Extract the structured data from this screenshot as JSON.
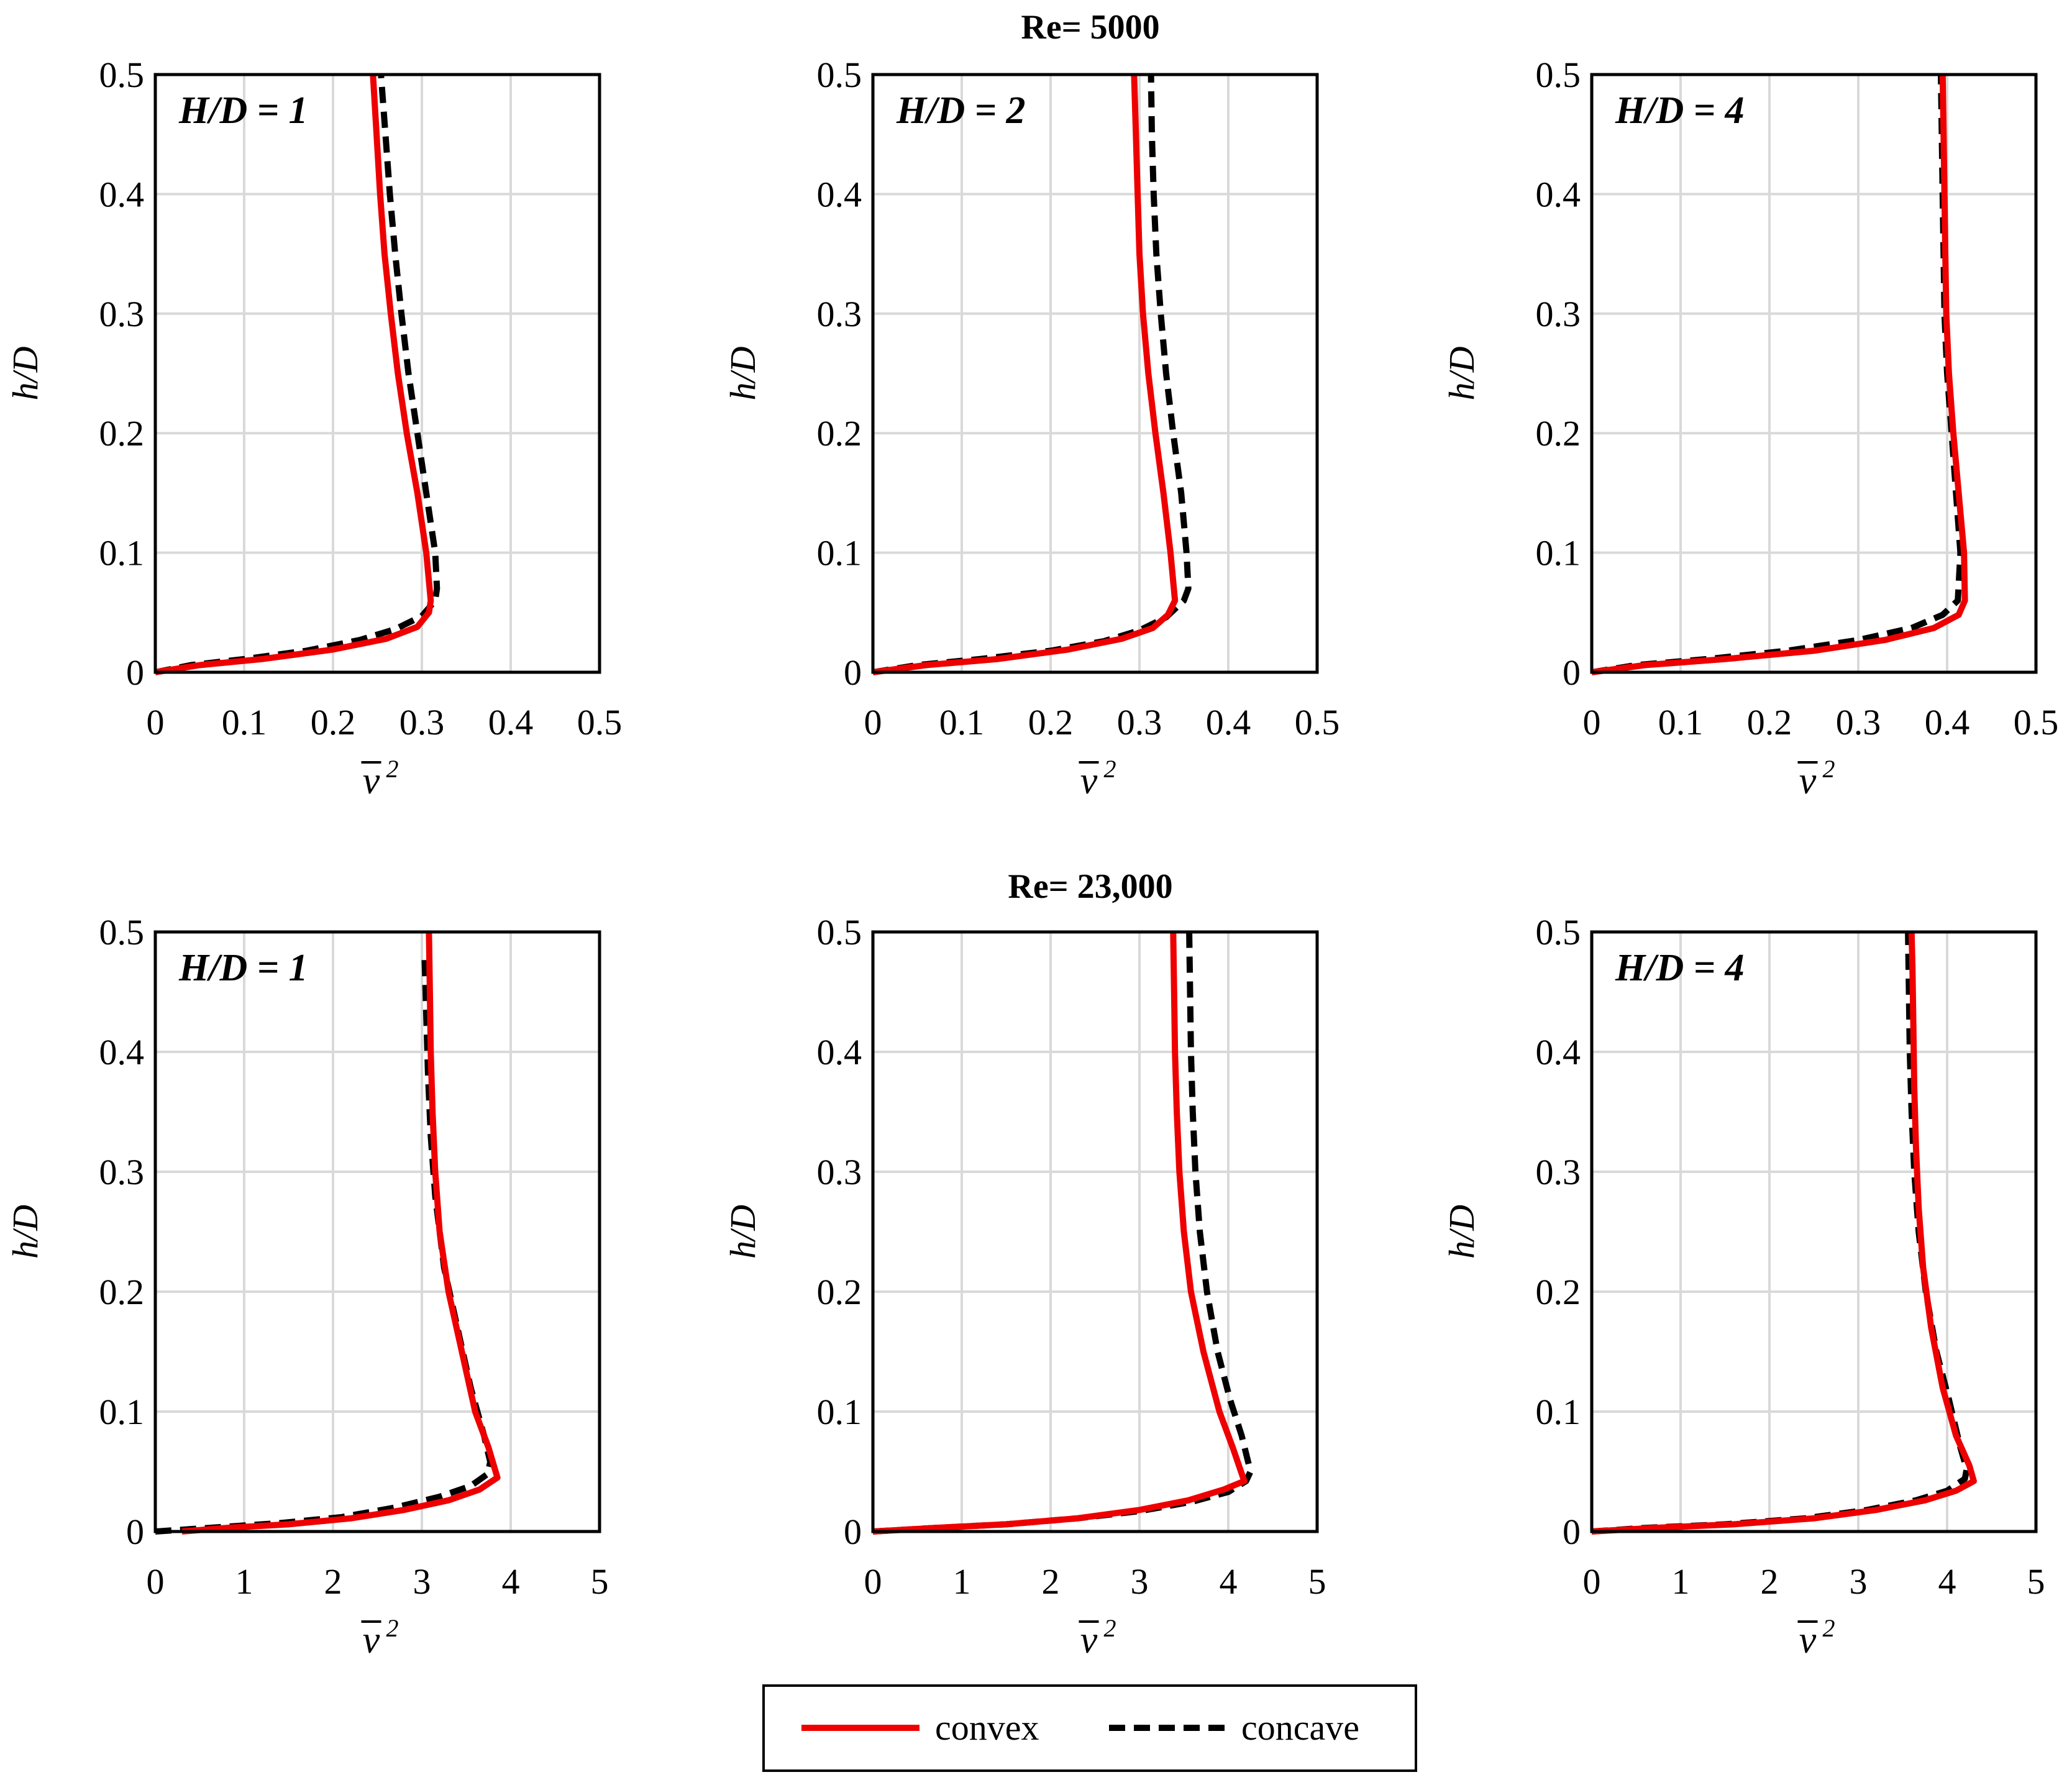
{
  "figure": {
    "row_titles": [
      "Re= 5000",
      "Re= 23,000"
    ],
    "y_axis_label": {
      "italic": "h/D"
    },
    "x_axis_label": {
      "symbol": "v",
      "superscript": "2"
    },
    "legend": {
      "entries": [
        "convex",
        "concave"
      ]
    },
    "colors": {
      "convex": "#ee0000",
      "concave": "#000000",
      "grid": "#d9d9d9",
      "frame": "#000000"
    }
  },
  "chart_data": [
    {
      "type": "line",
      "row": 0,
      "col": 0,
      "annotation": "H/D = 1",
      "ylabel": "h/D",
      "xlabel": "v̄²",
      "xlim": [
        0,
        0.5
      ],
      "ylim": [
        0,
        0.5
      ],
      "xticks": [
        "0",
        "0.1",
        "0.2",
        "0.3",
        "0.4",
        "0.5"
      ],
      "yticks": [
        "0",
        "0.1",
        "0.2",
        "0.3",
        "0.4",
        "0.5"
      ],
      "series": [
        {
          "name": "convex",
          "points": [
            [
              0,
              0
            ],
            [
              0.05,
              0.006
            ],
            [
              0.12,
              0.011
            ],
            [
              0.2,
              0.019
            ],
            [
              0.26,
              0.028
            ],
            [
              0.295,
              0.038
            ],
            [
              0.308,
              0.05
            ],
            [
              0.31,
              0.06
            ],
            [
              0.305,
              0.1
            ],
            [
              0.295,
              0.15
            ],
            [
              0.283,
              0.2
            ],
            [
              0.273,
              0.25
            ],
            [
              0.265,
              0.3
            ],
            [
              0.258,
              0.35
            ],
            [
              0.253,
              0.4
            ],
            [
              0.249,
              0.45
            ],
            [
              0.245,
              0.5
            ]
          ]
        },
        {
          "name": "concave",
          "points": [
            [
              0,
              0
            ],
            [
              0.04,
              0.006
            ],
            [
              0.1,
              0.011
            ],
            [
              0.17,
              0.018
            ],
            [
              0.23,
              0.027
            ],
            [
              0.27,
              0.036
            ],
            [
              0.3,
              0.047
            ],
            [
              0.315,
              0.06
            ],
            [
              0.317,
              0.07
            ],
            [
              0.315,
              0.1
            ],
            [
              0.305,
              0.15
            ],
            [
              0.295,
              0.2
            ],
            [
              0.285,
              0.25
            ],
            [
              0.277,
              0.3
            ],
            [
              0.27,
              0.35
            ],
            [
              0.264,
              0.4
            ],
            [
              0.259,
              0.45
            ],
            [
              0.254,
              0.5
            ]
          ]
        }
      ]
    },
    {
      "type": "line",
      "row": 0,
      "col": 1,
      "annotation": "H/D = 2",
      "ylabel": "h/D",
      "xlabel": "v̄²",
      "xlim": [
        0,
        0.5
      ],
      "ylim": [
        0,
        0.5
      ],
      "xticks": [
        "0",
        "0.1",
        "0.2",
        "0.3",
        "0.4",
        "0.5"
      ],
      "yticks": [
        "0",
        "0.1",
        "0.2",
        "0.3",
        "0.4",
        "0.5"
      ],
      "series": [
        {
          "name": "convex",
          "points": [
            [
              0,
              0
            ],
            [
              0.06,
              0.006
            ],
            [
              0.14,
              0.011
            ],
            [
              0.22,
              0.019
            ],
            [
              0.28,
              0.028
            ],
            [
              0.315,
              0.037
            ],
            [
              0.332,
              0.048
            ],
            [
              0.34,
              0.06
            ],
            [
              0.335,
              0.1
            ],
            [
              0.327,
              0.15
            ],
            [
              0.318,
              0.2
            ],
            [
              0.31,
              0.25
            ],
            [
              0.304,
              0.3
            ],
            [
              0.3,
              0.35
            ],
            [
              0.298,
              0.4
            ],
            [
              0.296,
              0.45
            ],
            [
              0.294,
              0.5
            ]
          ]
        },
        {
          "name": "concave",
          "points": [
            [
              0,
              0
            ],
            [
              0.05,
              0.006
            ],
            [
              0.12,
              0.011
            ],
            [
              0.2,
              0.018
            ],
            [
              0.26,
              0.026
            ],
            [
              0.3,
              0.035
            ],
            [
              0.33,
              0.046
            ],
            [
              0.35,
              0.06
            ],
            [
              0.355,
              0.07
            ],
            [
              0.353,
              0.1
            ],
            [
              0.347,
              0.15
            ],
            [
              0.338,
              0.2
            ],
            [
              0.33,
              0.25
            ],
            [
              0.324,
              0.3
            ],
            [
              0.319,
              0.35
            ],
            [
              0.316,
              0.4
            ],
            [
              0.314,
              0.45
            ],
            [
              0.313,
              0.5
            ]
          ]
        }
      ]
    },
    {
      "type": "line",
      "row": 0,
      "col": 2,
      "annotation": "H/D = 4",
      "ylabel": "h/D",
      "xlabel": "v̄²",
      "xlim": [
        0,
        0.5
      ],
      "ylim": [
        0,
        0.5
      ],
      "xticks": [
        "0",
        "0.1",
        "0.2",
        "0.3",
        "0.4",
        "0.5"
      ],
      "yticks": [
        "0",
        "0.1",
        "0.2",
        "0.3",
        "0.4",
        "0.5"
      ],
      "series": [
        {
          "name": "convex",
          "points": [
            [
              0,
              0
            ],
            [
              0.06,
              0.006
            ],
            [
              0.15,
              0.011
            ],
            [
              0.25,
              0.018
            ],
            [
              0.33,
              0.027
            ],
            [
              0.385,
              0.037
            ],
            [
              0.413,
              0.048
            ],
            [
              0.42,
              0.06
            ],
            [
              0.419,
              0.1
            ],
            [
              0.413,
              0.15
            ],
            [
              0.407,
              0.2
            ],
            [
              0.402,
              0.25
            ],
            [
              0.399,
              0.3
            ],
            [
              0.398,
              0.35
            ],
            [
              0.397,
              0.4
            ],
            [
              0.396,
              0.45
            ],
            [
              0.395,
              0.5
            ]
          ]
        },
        {
          "name": "concave",
          "points": [
            [
              0,
              0
            ],
            [
              0.05,
              0.006
            ],
            [
              0.13,
              0.011
            ],
            [
              0.22,
              0.018
            ],
            [
              0.3,
              0.027
            ],
            [
              0.36,
              0.037
            ],
            [
              0.395,
              0.048
            ],
            [
              0.412,
              0.06
            ],
            [
              0.415,
              0.1
            ],
            [
              0.41,
              0.15
            ],
            [
              0.405,
              0.2
            ],
            [
              0.4,
              0.25
            ],
            [
              0.397,
              0.3
            ],
            [
              0.396,
              0.35
            ],
            [
              0.395,
              0.4
            ],
            [
              0.394,
              0.45
            ],
            [
              0.393,
              0.5
            ]
          ]
        }
      ]
    },
    {
      "type": "line",
      "row": 1,
      "col": 0,
      "annotation": "H/D = 1",
      "ylabel": "h/D",
      "xlabel": "v̄²",
      "xlim": [
        0,
        5
      ],
      "ylim": [
        0,
        0.5
      ],
      "xticks": [
        "0",
        "1",
        "2",
        "3",
        "4",
        "5"
      ],
      "yticks": [
        "0",
        "0.1",
        "0.2",
        "0.3",
        "0.4",
        "0.5"
      ],
      "series": [
        {
          "name": "convex",
          "points": [
            [
              0.3,
              0
            ],
            [
              0.8,
              0.003
            ],
            [
              1.5,
              0.006
            ],
            [
              2.2,
              0.011
            ],
            [
              2.8,
              0.018
            ],
            [
              3.3,
              0.026
            ],
            [
              3.65,
              0.035
            ],
            [
              3.85,
              0.045
            ],
            [
              3.75,
              0.07
            ],
            [
              3.6,
              0.1
            ],
            [
              3.45,
              0.15
            ],
            [
              3.3,
              0.2
            ],
            [
              3.2,
              0.25
            ],
            [
              3.15,
              0.3
            ],
            [
              3.12,
              0.35
            ],
            [
              3.1,
              0.4
            ],
            [
              3.09,
              0.45
            ],
            [
              3.08,
              0.5
            ]
          ]
        },
        {
          "name": "concave",
          "points": [
            [
              0,
              0
            ],
            [
              0.6,
              0.003
            ],
            [
              1.4,
              0.007
            ],
            [
              2.1,
              0.012
            ],
            [
              2.7,
              0.02
            ],
            [
              3.2,
              0.029
            ],
            [
              3.55,
              0.038
            ],
            [
              3.74,
              0.048
            ],
            [
              3.77,
              0.058
            ],
            [
              3.7,
              0.08
            ],
            [
              3.55,
              0.12
            ],
            [
              3.4,
              0.17
            ],
            [
              3.25,
              0.22
            ],
            [
              3.15,
              0.28
            ],
            [
              3.1,
              0.33
            ],
            [
              3.07,
              0.38
            ],
            [
              3.05,
              0.43
            ],
            [
              3.03,
              0.48
            ]
          ]
        }
      ]
    },
    {
      "type": "line",
      "row": 1,
      "col": 1,
      "annotation": "",
      "ylabel": "h/D",
      "xlabel": "v̄²",
      "xlim": [
        0,
        5
      ],
      "ylim": [
        0,
        0.5
      ],
      "xticks": [
        "0",
        "1",
        "2",
        "3",
        "4",
        "5"
      ],
      "yticks": [
        "0",
        "0.1",
        "0.2",
        "0.3",
        "0.4",
        "0.5"
      ],
      "series": [
        {
          "name": "convex",
          "points": [
            [
              0,
              0
            ],
            [
              0.7,
              0.003
            ],
            [
              1.5,
              0.006
            ],
            [
              2.3,
              0.011
            ],
            [
              3,
              0.018
            ],
            [
              3.55,
              0.026
            ],
            [
              3.95,
              0.035
            ],
            [
              4.18,
              0.042
            ],
            [
              4.05,
              0.07
            ],
            [
              3.9,
              0.1
            ],
            [
              3.72,
              0.15
            ],
            [
              3.58,
              0.2
            ],
            [
              3.5,
              0.25
            ],
            [
              3.45,
              0.3
            ],
            [
              3.42,
              0.35
            ],
            [
              3.4,
              0.4
            ],
            [
              3.39,
              0.45
            ],
            [
              3.38,
              0.5
            ]
          ]
        },
        {
          "name": "concave",
          "points": [
            [
              0,
              0
            ],
            [
              0.7,
              0.003
            ],
            [
              1.5,
              0.006
            ],
            [
              2.3,
              0.011
            ],
            [
              3,
              0.017
            ],
            [
              3.6,
              0.025
            ],
            [
              4,
              0.033
            ],
            [
              4.2,
              0.042
            ],
            [
              4.25,
              0.05
            ],
            [
              4.15,
              0.08
            ],
            [
              4.02,
              0.11
            ],
            [
              3.88,
              0.15
            ],
            [
              3.76,
              0.2
            ],
            [
              3.68,
              0.25
            ],
            [
              3.63,
              0.3
            ],
            [
              3.6,
              0.35
            ],
            [
              3.58,
              0.4
            ],
            [
              3.57,
              0.45
            ],
            [
              3.56,
              0.5
            ]
          ]
        }
      ]
    },
    {
      "type": "line",
      "row": 1,
      "col": 2,
      "annotation": "H/D = 4",
      "ylabel": "h/D",
      "xlabel": "v̄²",
      "xlim": [
        0,
        5
      ],
      "ylim": [
        0,
        0.5
      ],
      "xticks": [
        "0",
        "1",
        "2",
        "3",
        "4",
        "5"
      ],
      "yticks": [
        "0",
        "0.1",
        "0.2",
        "0.3",
        "0.4",
        "0.5"
      ],
      "series": [
        {
          "name": "convex",
          "points": [
            [
              0,
              0
            ],
            [
              0.7,
              0.003
            ],
            [
              1.6,
              0.006
            ],
            [
              2.5,
              0.011
            ],
            [
              3.2,
              0.018
            ],
            [
              3.75,
              0.026
            ],
            [
              4.1,
              0.034
            ],
            [
              4.3,
              0.042
            ],
            [
              4.25,
              0.055
            ],
            [
              4.1,
              0.08
            ],
            [
              3.95,
              0.12
            ],
            [
              3.82,
              0.17
            ],
            [
              3.73,
              0.22
            ],
            [
              3.68,
              0.27
            ],
            [
              3.65,
              0.32
            ],
            [
              3.63,
              0.37
            ],
            [
              3.62,
              0.42
            ],
            [
              3.61,
              0.47
            ],
            [
              3.6,
              0.5
            ]
          ]
        },
        {
          "name": "concave",
          "points": [
            [
              0,
              0
            ],
            [
              0.6,
              0.003
            ],
            [
              1.5,
              0.006
            ],
            [
              2.4,
              0.011
            ],
            [
              3.1,
              0.018
            ],
            [
              3.65,
              0.026
            ],
            [
              4,
              0.034
            ],
            [
              4.2,
              0.044
            ],
            [
              4.22,
              0.052
            ],
            [
              4.15,
              0.07
            ],
            [
              4.02,
              0.11
            ],
            [
              3.88,
              0.15
            ],
            [
              3.76,
              0.2
            ],
            [
              3.68,
              0.25
            ],
            [
              3.63,
              0.3
            ],
            [
              3.6,
              0.35
            ],
            [
              3.58,
              0.4
            ],
            [
              3.57,
              0.45
            ],
            [
              3.56,
              0.5
            ]
          ]
        }
      ]
    }
  ]
}
